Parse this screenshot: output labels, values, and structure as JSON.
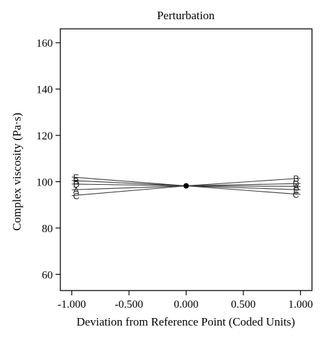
{
  "chart_data": {
    "type": "line",
    "title": "Perturbation",
    "xlabel": "Deviation from Reference Point (Coded Units)",
    "ylabel": "Complex viscosity (Pa·s)",
    "xlim": [
      -1.1,
      1.1
    ],
    "ylim": [
      53,
      166
    ],
    "x_ticks": [
      -1.0,
      -0.5,
      0.0,
      0.5,
      1.0
    ],
    "x_tick_labels": [
      "-1.000",
      "-0.500",
      "0.000",
      "0.500",
      "1.000"
    ],
    "y_ticks": [
      60,
      80,
      100,
      120,
      140,
      160
    ],
    "y_tick_labels": [
      "60",
      "80",
      "100",
      "120",
      "140",
      "160"
    ],
    "grid": false,
    "center_point": {
      "x": 0.0,
      "y": 98.2
    },
    "series": [
      {
        "name": "A",
        "x": [
          -1.0,
          0.0,
          1.0
        ],
        "y": [
          96.5,
          98.2,
          98.0
        ]
      },
      {
        "name": "B",
        "x": [
          -1.0,
          0.0,
          1.0
        ],
        "y": [
          100.5,
          98.2,
          101.5
        ]
      },
      {
        "name": "C",
        "x": [
          -1.0,
          0.0,
          1.0
        ],
        "y": [
          94.0,
          98.2,
          94.5
        ]
      },
      {
        "name": "D",
        "x": [
          -1.0,
          0.0,
          1.0
        ],
        "y": [
          99.0,
          98.2,
          99.2
        ]
      },
      {
        "name": "E",
        "x": [
          -1.0,
          0.0,
          1.0
        ],
        "y": [
          102.0,
          98.2,
          96.5
        ]
      }
    ],
    "line_color": "#3a3a3a",
    "axis_color": "#000000"
  }
}
